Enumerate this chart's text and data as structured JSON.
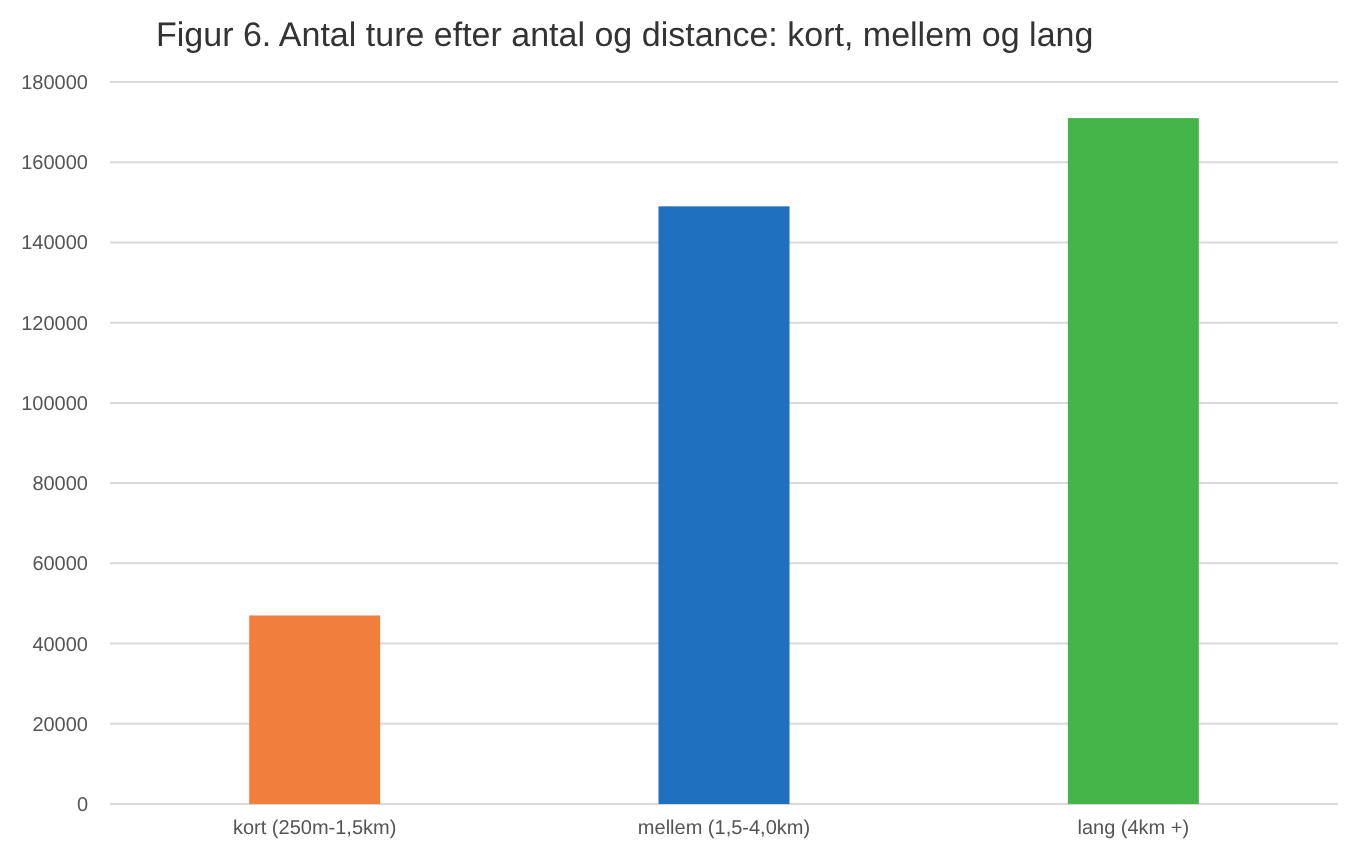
{
  "chart_data": {
    "type": "bar",
    "title": "Figur 6. Antal ture efter antal og distance: kort, mellem og lang",
    "categories": [
      "kort (250m-1,5km)",
      "mellem (1,5-4,0km)",
      "lang (4km +)"
    ],
    "values": [
      47000,
      149000,
      171000
    ],
    "colors": [
      "#f07f3c",
      "#1f70be",
      "#45b449"
    ],
    "ylim": [
      0,
      180000
    ],
    "yticks": [
      0,
      20000,
      40000,
      60000,
      80000,
      100000,
      120000,
      140000,
      160000,
      180000
    ],
    "grid": "y"
  }
}
